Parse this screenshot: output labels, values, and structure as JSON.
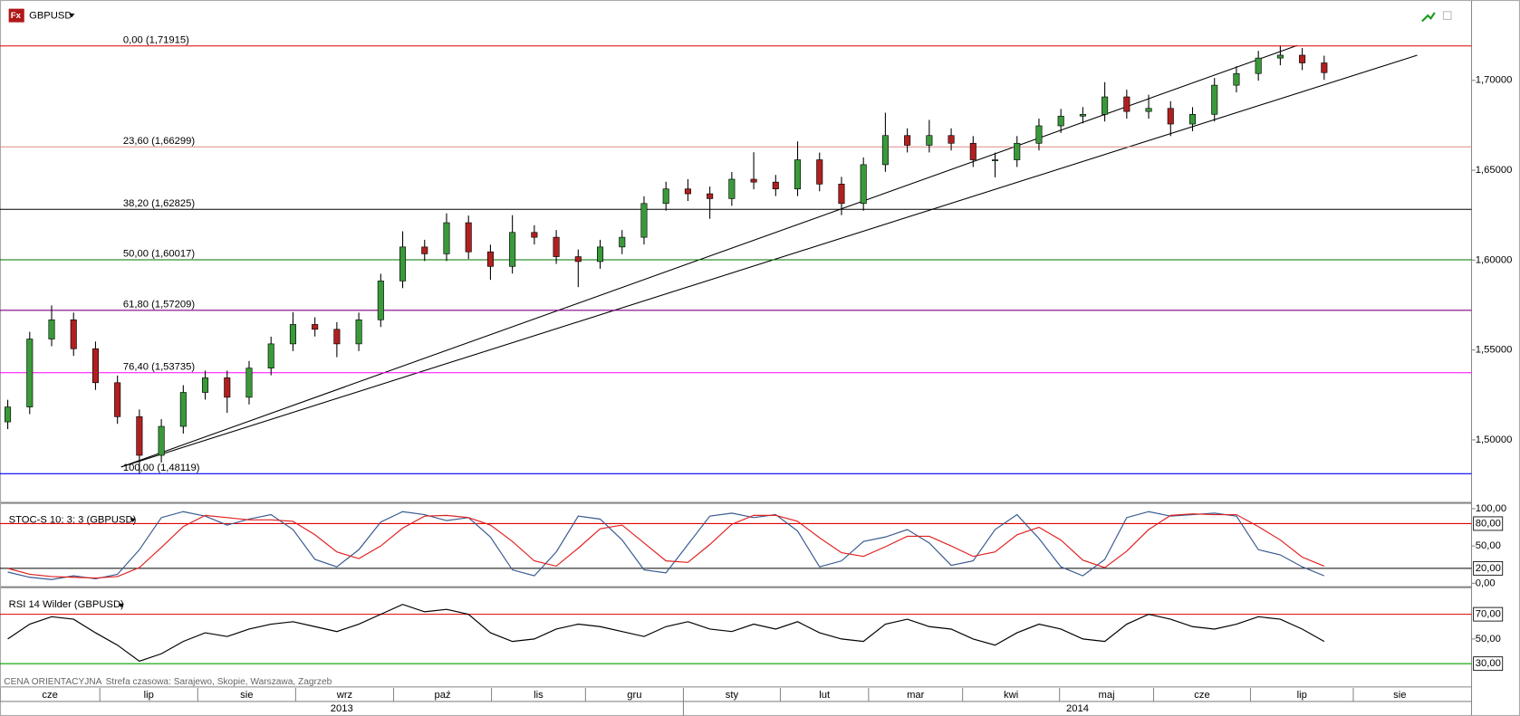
{
  "symbol": "GBPUSD",
  "footer": {
    "note": "CENA ORIENTACYJNA",
    "timezone": "Strefa czasowa: Sarajewo, Skopie, Warszawa, Zagrzeb"
  },
  "time_axis": {
    "months": [
      "cze",
      "lip",
      "sie",
      "wrz",
      "paź",
      "lis",
      "gru",
      "sty",
      "lut",
      "mar",
      "kwi",
      "maj",
      "cze",
      "lip",
      "sie"
    ],
    "years": [
      "2013",
      "2014"
    ]
  },
  "chart_data": [
    {
      "type": "candlestick",
      "up_color": "#3a9a3a",
      "down_color": "#b02020",
      "ylim": [
        1.4655,
        1.7447
      ],
      "yticks": [
        {
          "value": 1.5,
          "label": "1,50000"
        },
        {
          "value": 1.55,
          "label": "1,55000"
        },
        {
          "value": 1.6,
          "label": "1,60000"
        },
        {
          "value": 1.65,
          "label": "1,65000"
        },
        {
          "value": 1.7,
          "label": "1,70000"
        }
      ],
      "levels": [
        {
          "label": "0,00 (1,71915)",
          "value": 1.71915,
          "color": "#e00000"
        },
        {
          "label": "23,60 (1,66299)",
          "value": 1.66299,
          "color": "#e08a8a"
        },
        {
          "label": "38,20 (1,62825)",
          "value": 1.62825,
          "color": "#000000"
        },
        {
          "label": "50,00 (1,60017)",
          "value": 1.60017,
          "color": "#007000"
        },
        {
          "label": "61,80 (1,57209)",
          "value": 1.57209,
          "color": "#800080"
        },
        {
          "label": "76,40 (1,53735)",
          "value": 1.53735,
          "color": "#ff00ff"
        },
        {
          "label": "100,00 (1,48119)",
          "value": 1.48119,
          "color": "#0000ff"
        }
      ],
      "open": [
        1.51,
        1.5183,
        1.5561,
        1.5668,
        1.5507,
        1.5318,
        1.5129,
        1.4914,
        1.5075,
        1.5264,
        1.5345,
        1.5237,
        1.5399,
        1.5534,
        1.5642,
        1.5615,
        1.5534,
        1.5668,
        1.5884,
        1.6073,
        1.6035,
        1.6208,
        1.6046,
        1.5965,
        1.6154,
        1.6127,
        1.6019,
        1.5992,
        1.6073,
        1.6127,
        1.6315,
        1.6396,
        1.6369,
        1.6342,
        1.645,
        1.6434,
        1.6396,
        1.6558,
        1.6423,
        1.6315,
        1.6531,
        1.6693,
        1.6639,
        1.6693,
        1.665,
        1.6558,
        1.6558,
        1.665,
        1.6747,
        1.6801,
        1.6811,
        1.6908,
        1.6827,
        1.6844,
        1.6757,
        1.6811,
        1.6973,
        1.7038,
        1.7124,
        1.714,
        1.7097
      ],
      "high": [
        1.5223,
        1.5601,
        1.5748,
        1.5708,
        1.5547,
        1.5358,
        1.5169,
        1.5115,
        1.5304,
        1.5385,
        1.5385,
        1.5439,
        1.5574,
        1.571,
        1.5682,
        1.5655,
        1.5708,
        1.5924,
        1.616,
        1.6113,
        1.626,
        1.6248,
        1.6086,
        1.625,
        1.6194,
        1.6167,
        1.6059,
        1.6113,
        1.6167,
        1.6355,
        1.6436,
        1.645,
        1.6409,
        1.649,
        1.66,
        1.6474,
        1.666,
        1.6598,
        1.6463,
        1.6571,
        1.682,
        1.6733,
        1.678,
        1.6733,
        1.669,
        1.6598,
        1.669,
        1.6787,
        1.6841,
        1.6851,
        1.699,
        1.6948,
        1.692,
        1.6884,
        1.6851,
        1.7013,
        1.7078,
        1.7164,
        1.7192,
        1.718,
        1.7137
      ],
      "low": [
        1.506,
        1.5143,
        1.5521,
        1.5467,
        1.5278,
        1.5089,
        1.4812,
        1.4874,
        1.5035,
        1.5224,
        1.515,
        1.5197,
        1.5359,
        1.5494,
        1.5575,
        1.546,
        1.5494,
        1.5628,
        1.5844,
        1.5995,
        1.5995,
        1.6006,
        1.589,
        1.5925,
        1.6087,
        1.5979,
        1.585,
        1.5952,
        1.6033,
        1.6087,
        1.6275,
        1.6329,
        1.623,
        1.6302,
        1.6394,
        1.6356,
        1.6356,
        1.6383,
        1.625,
        1.6275,
        1.6491,
        1.6599,
        1.6599,
        1.661,
        1.6518,
        1.646,
        1.6518,
        1.661,
        1.6707,
        1.6761,
        1.6771,
        1.6787,
        1.6787,
        1.669,
        1.6717,
        1.6771,
        1.6933,
        1.6998,
        1.7084,
        1.7057,
        1.7003
      ],
      "close": [
        1.5183,
        1.5561,
        1.5668,
        1.5507,
        1.5318,
        1.5129,
        1.4914,
        1.5075,
        1.5264,
        1.5345,
        1.5237,
        1.5399,
        1.5534,
        1.5642,
        1.5615,
        1.5534,
        1.5668,
        1.5884,
        1.6073,
        1.6035,
        1.6208,
        1.6046,
        1.5965,
        1.6154,
        1.6127,
        1.6019,
        1.5992,
        1.6073,
        1.6127,
        1.6315,
        1.6396,
        1.6369,
        1.6342,
        1.645,
        1.6434,
        1.6396,
        1.6558,
        1.6423,
        1.6315,
        1.6531,
        1.6693,
        1.6639,
        1.6693,
        1.665,
        1.6558,
        1.6558,
        1.665,
        1.6747,
        1.6801,
        1.6811,
        1.6908,
        1.6827,
        1.6844,
        1.6757,
        1.6811,
        1.6973,
        1.7038,
        1.7124,
        1.714,
        1.7097,
        1.7043
      ]
    },
    {
      "type": "line",
      "title": "STOC-S 10; 3; 3 (GBPUSD)",
      "ylim": [
        -3.9,
        106.5
      ],
      "yticks": [
        {
          "value": 0,
          "label": "0,00"
        },
        {
          "value": 50,
          "label": "50,00"
        },
        {
          "value": 100,
          "label": "100,00"
        }
      ],
      "levels": [
        {
          "value": 80,
          "label": "80,00",
          "color": "#e00000"
        },
        {
          "value": 20,
          "label": "20,00",
          "color": "#000000"
        }
      ],
      "series": [
        {
          "color": "#3a5a90",
          "values": [
            15,
            8,
            5,
            10,
            6,
            12,
            45,
            88,
            96,
            90,
            78,
            86,
            92,
            72,
            32,
            22,
            45,
            82,
            96,
            92,
            84,
            88,
            62,
            18,
            10,
            42,
            90,
            86,
            58,
            18,
            14,
            52,
            90,
            94,
            88,
            92,
            70,
            22,
            30,
            56,
            62,
            72,
            54,
            24,
            30,
            72,
            92,
            60,
            22,
            10,
            32,
            88,
            96,
            90,
            92,
            94,
            90,
            45,
            38,
            22,
            10
          ]
        },
        {
          "color": "#e02020",
          "values": [
            20,
            12,
            9,
            8,
            7,
            9,
            21,
            48,
            76,
            91,
            88,
            85,
            85,
            83,
            65,
            42,
            33,
            50,
            74,
            90,
            91,
            88,
            78,
            56,
            30,
            23,
            47,
            73,
            78,
            54,
            30,
            28,
            52,
            79,
            91,
            91,
            83,
            61,
            41,
            36,
            49,
            63,
            63,
            50,
            36,
            42,
            65,
            75,
            58,
            31,
            21,
            43,
            72,
            91,
            93,
            92,
            92,
            76,
            58,
            35,
            23
          ]
        }
      ]
    },
    {
      "type": "line",
      "title": "RSI 14 Wilder (GBPUSD)",
      "ylim": [
        18.2,
        91.2
      ],
      "yticks": [
        {
          "value": 50,
          "label": "50,00"
        }
      ],
      "levels": [
        {
          "value": 70,
          "label": "70,00",
          "color": "#e00000"
        },
        {
          "value": 30,
          "label": "30,00",
          "color": "#00a000"
        }
      ],
      "series": [
        {
          "color": "#000000",
          "values": [
            50,
            62,
            68,
            66,
            55,
            45,
            32,
            38,
            48,
            55,
            52,
            58,
            62,
            64,
            60,
            56,
            62,
            70,
            78,
            72,
            74,
            70,
            55,
            48,
            50,
            58,
            62,
            60,
            56,
            52,
            60,
            64,
            58,
            56,
            62,
            58,
            64,
            55,
            50,
            48,
            62,
            66,
            60,
            58,
            50,
            45,
            55,
            62,
            58,
            50,
            48,
            62,
            70,
            66,
            60,
            58,
            62,
            68,
            66,
            58,
            48
          ]
        }
      ]
    }
  ]
}
